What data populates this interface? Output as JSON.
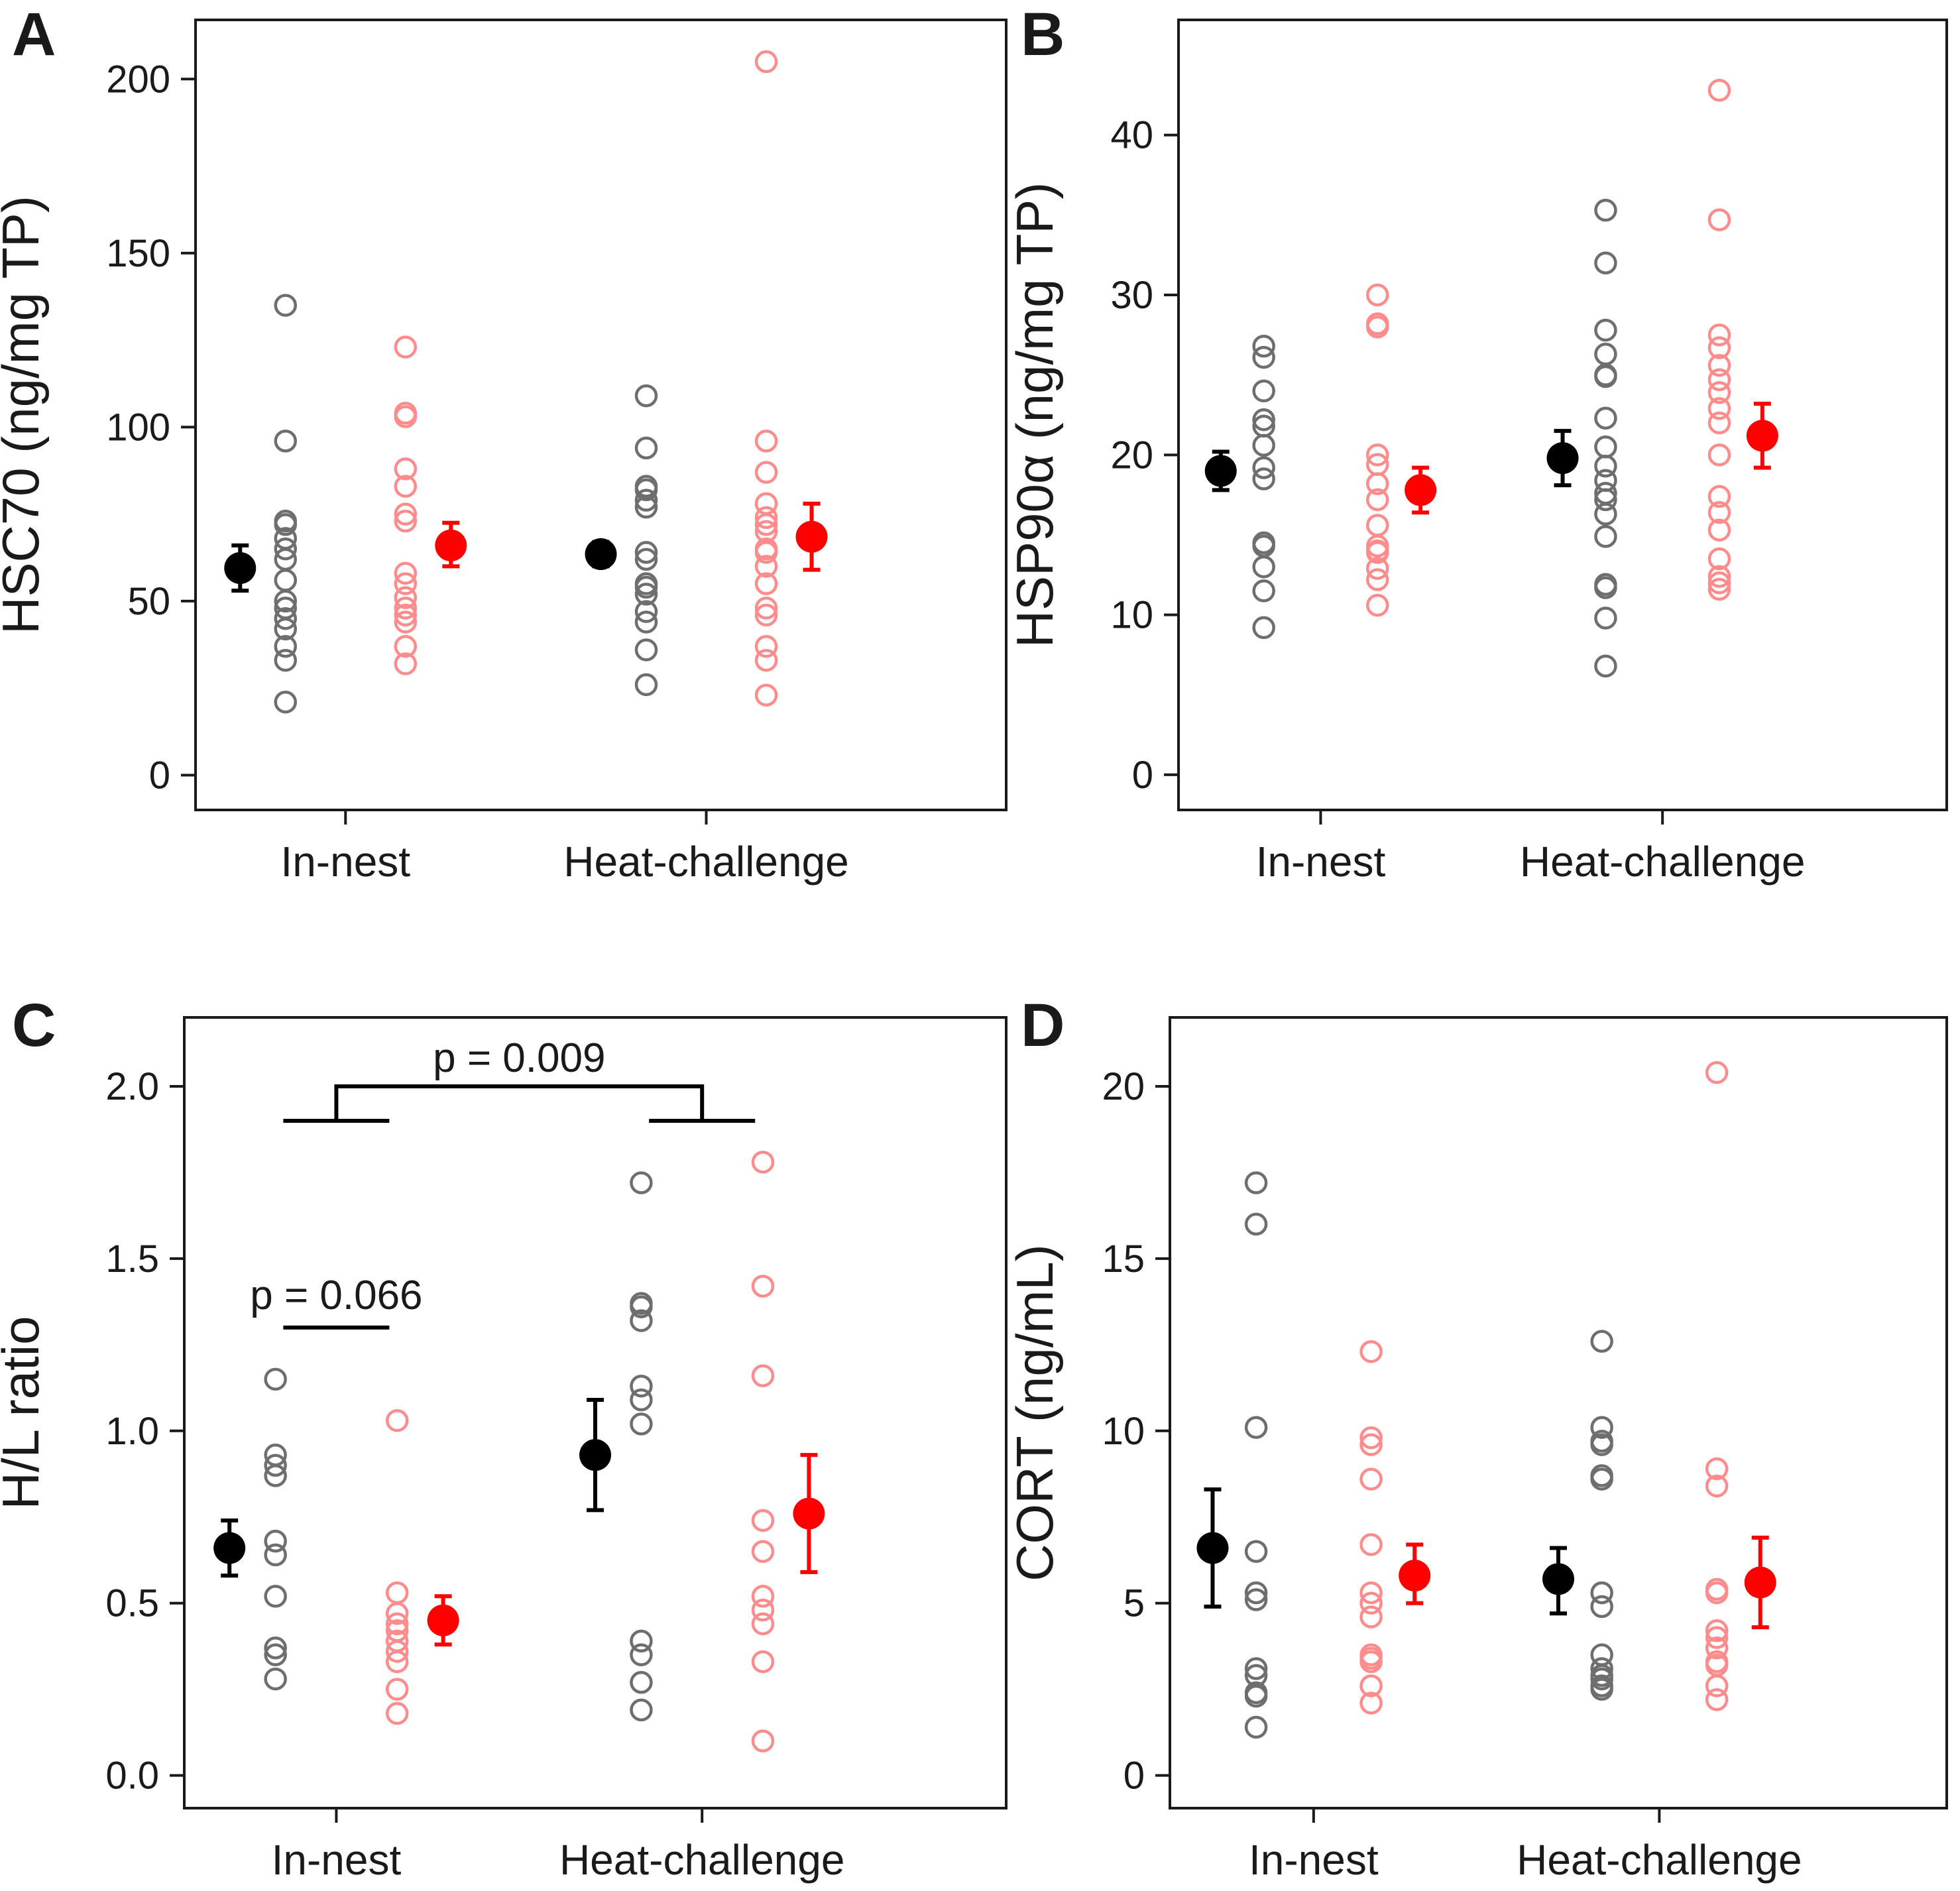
{
  "colors": {
    "black": "#000000",
    "red": "#ff0000",
    "open_black": "#6e6e6e",
    "open_red": "#ff8c8c"
  },
  "chart_data": [
    {
      "panel": "A",
      "type": "scatter",
      "title": "",
      "xlabel": "",
      "ylabel": "HSC70 (ng/mg TP)",
      "categories": [
        "In-nest",
        "Heat-challenge"
      ],
      "ylim": [
        -10,
        217
      ],
      "yticks": [
        0,
        50,
        100,
        150,
        200
      ],
      "tick_labels": [
        "0",
        "50",
        "100",
        "150",
        "200"
      ],
      "series": [
        {
          "name": "black",
          "points": [
            [
              135,
              96,
              73,
              72,
              68,
              65,
              62,
              56,
              50,
              48,
              45,
              42,
              37,
              33,
              21
            ],
            [
              109,
              94,
              83,
              82,
              79,
              77,
              64,
              62,
              55,
              54,
              52,
              47,
              44,
              36,
              26
            ]
          ],
          "mean": [
            59.5,
            63.5
          ],
          "err_low": [
            53,
            60
          ],
          "err_high": [
            66,
            67
          ]
        },
        {
          "name": "red",
          "points": [
            [
              123,
              104,
              103,
              88,
              83,
              75,
              73,
              58,
              55,
              51,
              48,
              46,
              44,
              37,
              32
            ],
            [
              205,
              96,
              87,
              78,
              74,
              72,
              70,
              65,
              64,
              60,
              55,
              48,
              46,
              37,
              33,
              23
            ]
          ],
          "mean": [
            66,
            68.5
          ],
          "err_low": [
            60,
            59
          ],
          "err_high": [
            72.5,
            78
          ]
        }
      ],
      "annotations": []
    },
    {
      "panel": "B",
      "type": "scatter",
      "title": "",
      "xlabel": "",
      "ylabel": "HSP90α (ng/mg TP)",
      "categories": [
        "In-nest",
        "Heat-challenge"
      ],
      "ylim": [
        -2.2,
        47.2
      ],
      "yticks": [
        0,
        10,
        20,
        30,
        40
      ],
      "tick_labels": [
        "0",
        "10",
        "20",
        "30",
        "40"
      ],
      "series": [
        {
          "name": "black",
          "points": [
            [
              26.8,
              26.1,
              24,
              22.2,
              21.8,
              20.6,
              19.2,
              18.5,
              14.5,
              14.3,
              13,
              11.5,
              9.2
            ],
            [
              35.3,
              32,
              27.8,
              26.3,
              25,
              24.9,
              22.3,
              20.5,
              19.3,
              18.4,
              17.6,
              17.2,
              16.3,
              14.9,
              11.9,
              11.7,
              9.8,
              6.8
            ]
          ],
          "mean": [
            19,
            19.8
          ],
          "err_low": [
            17.8,
            18.1
          ],
          "err_high": [
            20.2,
            21.5
          ]
        },
        {
          "name": "red",
          "points": [
            [
              30,
              28.2,
              28,
              20,
              19.4,
              18.2,
              17.2,
              15.6,
              14.3,
              14,
              13.9,
              12.9,
              12.2,
              10.6
            ],
            [
              42.8,
              34.7,
              27.5,
              26.7,
              25.6,
              24.7,
              23.9,
              22.9,
              22,
              20,
              17.4,
              16.4,
              15.3,
              13.5,
              12.4,
              12,
              11.6
            ]
          ],
          "mean": [
            17.8,
            21.2
          ],
          "err_low": [
            16.4,
            19.2
          ],
          "err_high": [
            19.2,
            23.2
          ]
        }
      ],
      "annotations": []
    },
    {
      "panel": "C",
      "type": "scatter",
      "title": "",
      "xlabel": "",
      "ylabel": "H/L ratio",
      "categories": [
        "In-nest",
        "Heat-challenge"
      ],
      "ylim": [
        -0.095,
        2.2
      ],
      "yticks": [
        0,
        0.5,
        1,
        1.5,
        2
      ],
      "tick_labels": [
        "0.0",
        "0.5",
        "1.0",
        "1.5",
        "2.0"
      ],
      "series": [
        {
          "name": "black",
          "points": [
            [
              1.15,
              0.93,
              0.9,
              0.87,
              0.68,
              0.64,
              0.52,
              0.37,
              0.35,
              0.28
            ],
            [
              1.72,
              1.37,
              1.36,
              1.32,
              1.13,
              1.09,
              1.02,
              0.39,
              0.35,
              0.27,
              0.19
            ]
          ],
          "mean": [
            0.66,
            0.93
          ],
          "err_low": [
            0.58,
            0.77
          ],
          "err_high": [
            0.74,
            1.09
          ]
        },
        {
          "name": "red",
          "points": [
            [
              1.03,
              0.53,
              0.47,
              0.44,
              0.42,
              0.39,
              0.36,
              0.33,
              0.25,
              0.18
            ],
            [
              1.78,
              1.42,
              1.16,
              0.74,
              0.65,
              0.52,
              0.48,
              0.44,
              0.33,
              0.1
            ]
          ],
          "mean": [
            0.45,
            0.76
          ],
          "err_low": [
            0.38,
            0.59
          ],
          "err_high": [
            0.52,
            0.93
          ]
        }
      ],
      "annotations": [
        {
          "text": "p = 0.009",
          "type": "bracket",
          "left_group": "In-nest",
          "right_group": "Heat-challenge",
          "y_top": 2.0,
          "y_arms": 1.9
        },
        {
          "text": "p = 0.066",
          "type": "line",
          "group": "In-nest",
          "y": 1.3
        }
      ]
    },
    {
      "panel": "D",
      "type": "scatter",
      "title": "",
      "xlabel": "",
      "ylabel": "CORT (ng/mL)",
      "categories": [
        "In-nest",
        "Heat-challenge"
      ],
      "ylim": [
        -0.95,
        22
      ],
      "yticks": [
        0,
        5,
        10,
        15,
        20
      ],
      "tick_labels": [
        "0",
        "5",
        "10",
        "15",
        "20"
      ],
      "series": [
        {
          "name": "black",
          "points": [
            [
              17.2,
              16,
              10.1,
              6.5,
              5.3,
              5.1,
              3.1,
              2.9,
              2.4,
              2.3,
              1.4
            ],
            [
              12.6,
              10.1,
              9.7,
              9.6,
              8.7,
              8.6,
              5.3,
              4.9,
              3.5,
              3.1,
              2.9,
              2.8,
              2.6,
              2.5
            ]
          ],
          "mean": [
            6.6,
            5.7
          ],
          "err_low": [
            4.9,
            4.7
          ],
          "err_high": [
            8.3,
            6.6
          ]
        },
        {
          "name": "red",
          "points": [
            [
              12.3,
              9.8,
              9.6,
              8.6,
              6.7,
              5.3,
              5,
              4.6,
              3.5,
              3.4,
              3.3,
              2.6,
              2.1
            ],
            [
              20.4,
              8.9,
              8.4,
              5.4,
              5.3,
              4.2,
              4,
              3.7,
              3.3,
              3.2,
              2.6,
              2.2
            ]
          ],
          "mean": [
            5.8,
            5.6
          ],
          "err_low": [
            5,
            4.3
          ],
          "err_high": [
            6.7,
            6.9
          ]
        }
      ],
      "annotations": []
    }
  ]
}
